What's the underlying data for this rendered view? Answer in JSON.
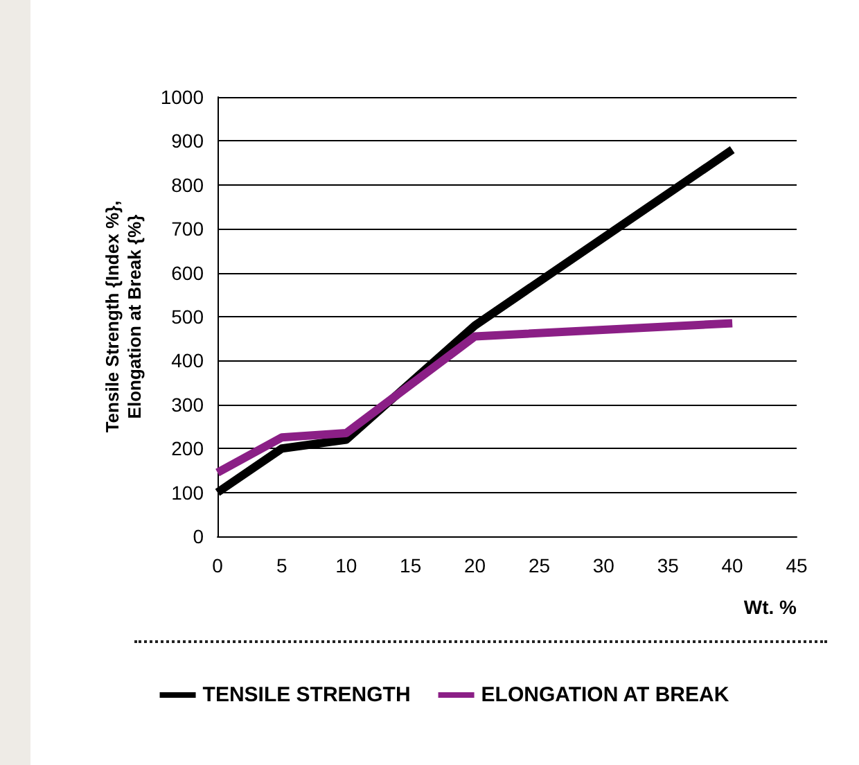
{
  "chart_data": {
    "type": "line",
    "xlabel": "Wt. %",
    "ylabel": "Tensile Strength {Index %},\nElongation at Break {%}",
    "x": [
      0,
      5,
      10,
      20,
      40
    ],
    "series": [
      {
        "name": "TENSILE STRENGTH",
        "color": "#000000",
        "values": [
          100,
          200,
          220,
          480,
          880
        ]
      },
      {
        "name": "ELONGATION AT BREAK",
        "color": "#8b1f86",
        "values": [
          145,
          225,
          235,
          455,
          485
        ]
      }
    ],
    "xlim": [
      0,
      45
    ],
    "xticks": [
      0,
      5,
      10,
      15,
      20,
      25,
      30,
      35,
      40,
      45
    ],
    "ylim": [
      0,
      1000
    ],
    "yticks": [
      0,
      100,
      200,
      300,
      400,
      500,
      600,
      700,
      800,
      900,
      1000
    ],
    "grid": "y",
    "legend": "bottom",
    "marker": "none",
    "line_style": "solid"
  }
}
